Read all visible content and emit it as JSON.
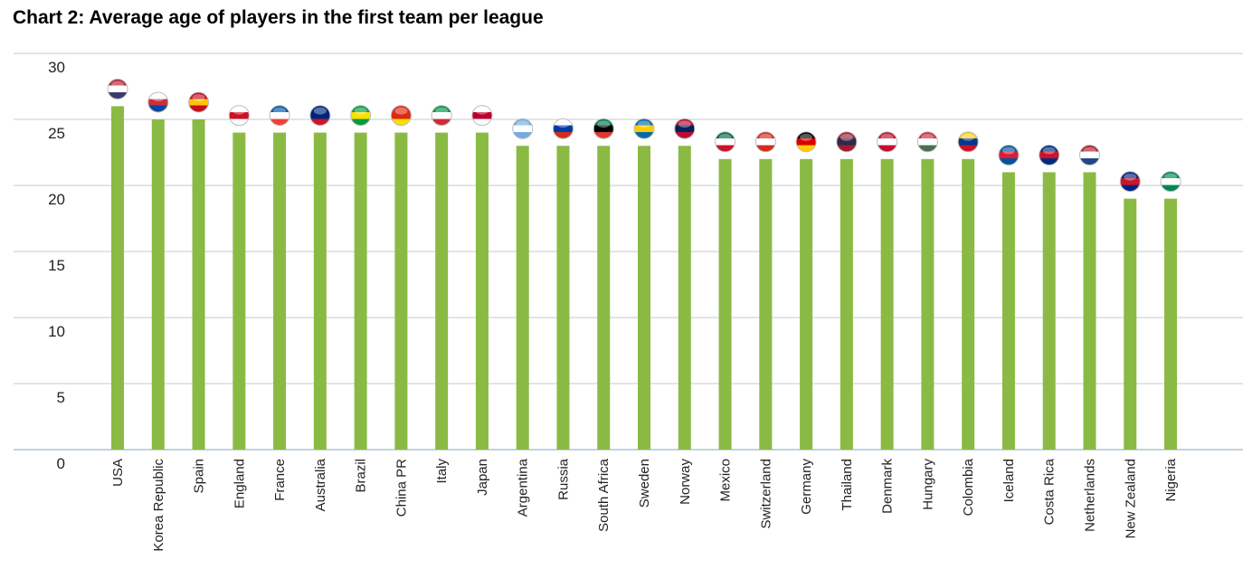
{
  "chart_data": {
    "type": "bar",
    "title": "Chart 2: Average age of players in the first team per league",
    "xlabel": "",
    "ylabel": "",
    "ylim": [
      0,
      30
    ],
    "yticks": [
      0,
      5,
      10,
      15,
      20,
      25,
      30
    ],
    "grid": true,
    "bar_color": "#8aba44",
    "categories": [
      "USA",
      "Korea Republic",
      "Spain",
      "England",
      "France",
      "Australia",
      "Brazil",
      "China PR",
      "Italy",
      "Japan",
      "Argentina",
      "Russia",
      "South Africa",
      "Sweden",
      "Norway",
      "Mexico",
      "Switzerland",
      "Germany",
      "Thailand",
      "Denmark",
      "Hungary",
      "Colombia",
      "Iceland",
      "Costa Rica",
      "Netherlands",
      "New Zealand",
      "Nigeria"
    ],
    "values": [
      26,
      25,
      25,
      24,
      24,
      24,
      24,
      24,
      24,
      24,
      23,
      23,
      23,
      23,
      23,
      22,
      22,
      22,
      22,
      22,
      22,
      22,
      21,
      21,
      21,
      19,
      19
    ],
    "flag_colors": [
      [
        "#b22234",
        "#ffffff",
        "#3c3b6e"
      ],
      [
        "#ffffff",
        "#cd2e3a",
        "#0047a0"
      ],
      [
        "#c60b1e",
        "#ffc400",
        "#c60b1e"
      ],
      [
        "#ffffff",
        "#ce1124",
        "#ffffff"
      ],
      [
        "#0055a4",
        "#ffffff",
        "#ef4135"
      ],
      [
        "#00247d",
        "#00247d",
        "#cf142b"
      ],
      [
        "#009c3b",
        "#ffdf00",
        "#009c3b"
      ],
      [
        "#de2910",
        "#de2910",
        "#ffde00"
      ],
      [
        "#009246",
        "#ffffff",
        "#ce2b37"
      ],
      [
        "#ffffff",
        "#bc002d",
        "#ffffff"
      ],
      [
        "#74acdf",
        "#ffffff",
        "#74acdf"
      ],
      [
        "#ffffff",
        "#0039a6",
        "#d52b1e"
      ],
      [
        "#007a4d",
        "#000000",
        "#de3831"
      ],
      [
        "#006aa7",
        "#fecc00",
        "#006aa7"
      ],
      [
        "#ba0c2f",
        "#00205b",
        "#ba0c2f"
      ],
      [
        "#006847",
        "#ffffff",
        "#ce1126"
      ],
      [
        "#d52b1e",
        "#ffffff",
        "#d52b1e"
      ],
      [
        "#000000",
        "#dd0000",
        "#ffce00"
      ],
      [
        "#a51931",
        "#2d2a4a",
        "#a51931"
      ],
      [
        "#c60c30",
        "#ffffff",
        "#c60c30"
      ],
      [
        "#ce2939",
        "#ffffff",
        "#477050"
      ],
      [
        "#fcd116",
        "#003893",
        "#ce1126"
      ],
      [
        "#02529c",
        "#dc1e35",
        "#02529c"
      ],
      [
        "#002b7f",
        "#ce1126",
        "#002b7f"
      ],
      [
        "#ae1c28",
        "#ffffff",
        "#21468b"
      ],
      [
        "#00247d",
        "#cc142b",
        "#00247d"
      ],
      [
        "#008751",
        "#ffffff",
        "#008751"
      ]
    ]
  }
}
